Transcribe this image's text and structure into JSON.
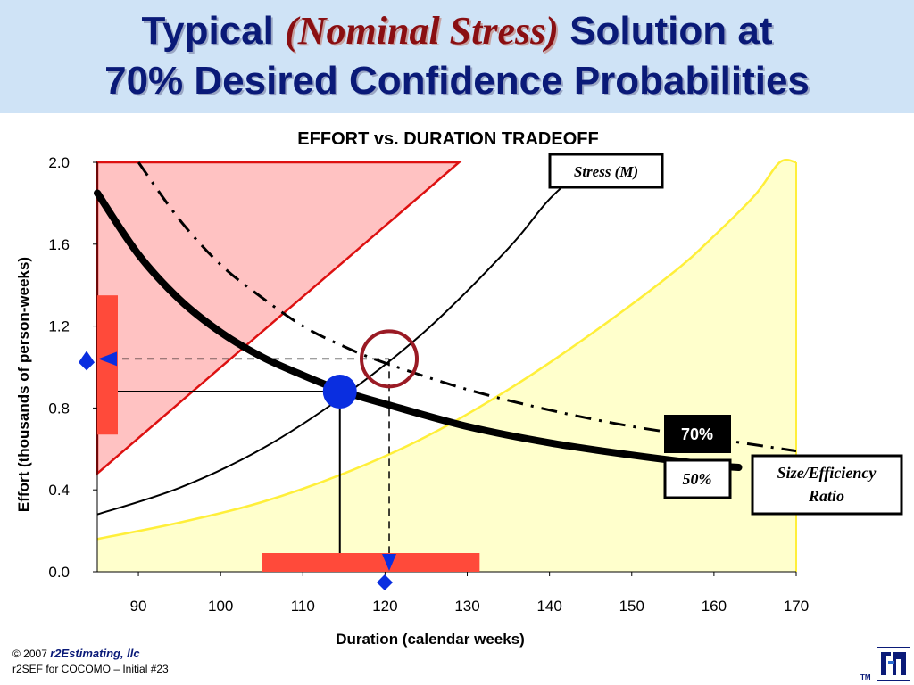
{
  "header": {
    "title_pre": "Typical ",
    "title_italic": "(Nominal Stress)",
    "title_post": " Solution at",
    "title_line2": "70% Desired Confidence Probabilities",
    "background_color": "#cfe3f6",
    "title_color": "#0a1a78"
  },
  "chart_data": {
    "type": "line",
    "title": "EFFORT vs. DURATION TRADEOFF",
    "xlabel": "Duration (calendar weeks)",
    "ylabel": "Effort (thousands of person-weeks)",
    "xlim": [
      85,
      170
    ],
    "ylim": [
      0.0,
      2.0
    ],
    "xticks": [
      90,
      100,
      110,
      120,
      130,
      140,
      150,
      160,
      170
    ],
    "yticks": [
      0.0,
      0.4,
      0.8,
      1.2,
      1.6,
      2.0
    ],
    "xtick_labels": [
      "90",
      "100",
      "110",
      "120",
      "130",
      "140",
      "150",
      "160",
      "170"
    ],
    "ytick_labels": [
      "0.0",
      "0.4",
      "0.8",
      "1.2",
      "1.6",
      "2.0"
    ],
    "grid": false,
    "series": [
      {
        "name": "50%",
        "style": "thick-solid",
        "color": "#000000",
        "x": [
          85,
          90,
          95,
          100,
          105,
          110,
          115,
          120,
          130,
          140,
          150,
          160,
          163
        ],
        "y": [
          1.85,
          1.55,
          1.33,
          1.17,
          1.05,
          0.96,
          0.88,
          0.82,
          0.71,
          0.63,
          0.57,
          0.52,
          0.51
        ]
      },
      {
        "name": "70%",
        "style": "dash-dot",
        "color": "#000000",
        "x": [
          90,
          95,
          100,
          105,
          110,
          115,
          120,
          130,
          140,
          150,
          160,
          170
        ],
        "y": [
          2.0,
          1.72,
          1.5,
          1.34,
          1.2,
          1.1,
          1.02,
          0.89,
          0.79,
          0.71,
          0.65,
          0.59
        ]
      },
      {
        "name": "Stress (M)",
        "style": "thin-solid",
        "color": "#000000",
        "x": [
          85,
          95,
          105,
          115,
          125,
          135,
          140,
          145
        ],
        "y": [
          0.28,
          0.41,
          0.6,
          0.86,
          1.18,
          1.58,
          1.82,
          2.0
        ]
      },
      {
        "name": "Size/Efficiency Ratio",
        "style": "yellow-region",
        "color": "#ffef3a",
        "fill": "#ffffcc",
        "x": [
          85,
          95,
          105,
          115,
          125,
          135,
          145,
          155,
          160,
          165,
          168,
          170
        ],
        "y": [
          0.16,
          0.24,
          0.34,
          0.48,
          0.66,
          0.89,
          1.16,
          1.46,
          1.64,
          1.84,
          2.0,
          2.0
        ]
      }
    ],
    "shaded_regions": [
      {
        "name": "infeasible-region",
        "fill": "#ffc2c2",
        "stroke": "#dd1111",
        "x": [
          85,
          85,
          129,
          85
        ],
        "y": [
          0.48,
          2.0,
          2.0,
          0.48
        ]
      }
    ],
    "range_bars": [
      {
        "name": "effort-range-bar",
        "axis": "y",
        "from": 0.67,
        "to": 1.35,
        "color": "#ff4a3a"
      },
      {
        "name": "duration-range-bar",
        "axis": "x",
        "from": 105,
        "to": 131.5,
        "color": "#ff4a3a"
      }
    ],
    "solution_point": {
      "x": 114.5,
      "y": 0.88,
      "color": "#0a2ee0"
    },
    "highlight_circle": {
      "x": 120.5,
      "y": 1.04,
      "color": "#9a1a24"
    },
    "guide_lines": {
      "solid": {
        "x": 114.5,
        "y": 0.88
      },
      "dashed": {
        "x": 120.5,
        "y": 1.04
      }
    },
    "markers": {
      "color": "#0a2ee0",
      "effort_value": 1.04,
      "duration_value": 120.5
    },
    "labels": {
      "stress": "Stress (M)",
      "p70": "70%",
      "p50": "50%",
      "ratio_line1": "Size/Efficiency",
      "ratio_line2": "Ratio"
    }
  },
  "footer": {
    "copyright": "© 2007 ",
    "brand": "r2Estimating, llc",
    "line2": "r2SEF for COCOMO – Initial #23",
    "tm": "TM"
  }
}
